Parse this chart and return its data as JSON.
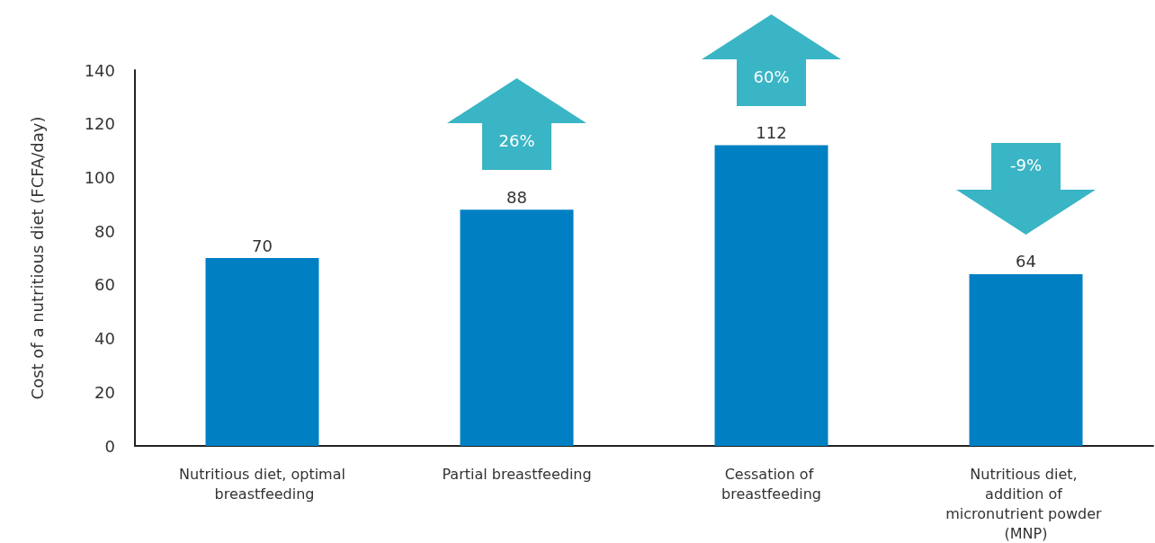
{
  "chart_data": {
    "type": "bar",
    "ylabel": "Cost of a nutritious diet (FCFA/day)",
    "categories": [
      "Nutritious diet, optimal breastfeeding",
      "Partial breastfeeding",
      "Cessation of breastfeeding",
      "Nutritious diet, addition of micronutrient powder (MNP)"
    ],
    "values": [
      70,
      88,
      112,
      64
    ],
    "color": "#0080c3",
    "data_labels": true,
    "ylim": [
      0,
      140
    ],
    "yticks": [
      0,
      20,
      40,
      60,
      80,
      100,
      120,
      140
    ],
    "grid": false,
    "annotations": [
      "26%",
      "60%",
      "-9%"
    ]
  }
}
